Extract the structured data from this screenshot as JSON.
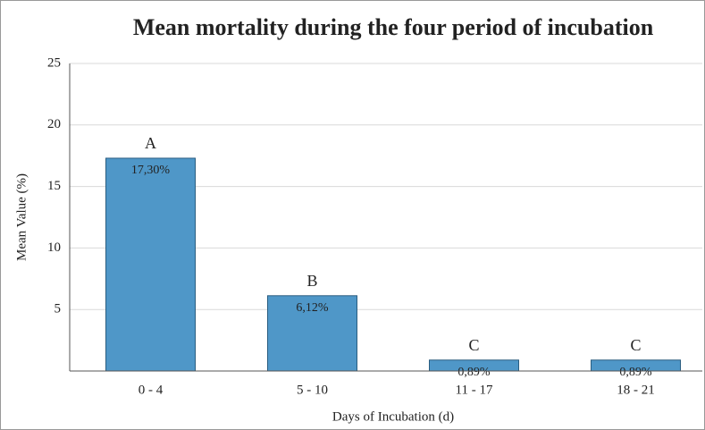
{
  "chart_data": {
    "type": "bar",
    "title": "Mean mortality during the four period of incubation",
    "x_label": "Days of Incubation (d)",
    "y_label": "Mean Value (%)",
    "categories": [
      "0 - 4",
      "5 - 10",
      "11 - 17",
      "18 - 21"
    ],
    "values": [
      17.3,
      6.12,
      0.89,
      0.89
    ],
    "value_labels": [
      "17,30%",
      "6,12%",
      "0,89%",
      "0,89%"
    ],
    "annotations": [
      "A",
      "B",
      "C",
      "C"
    ],
    "color": "#4f97c8",
    "ylim": [
      0,
      25
    ],
    "yticks": [
      5,
      10,
      15,
      20,
      25
    ],
    "grid": true
  }
}
